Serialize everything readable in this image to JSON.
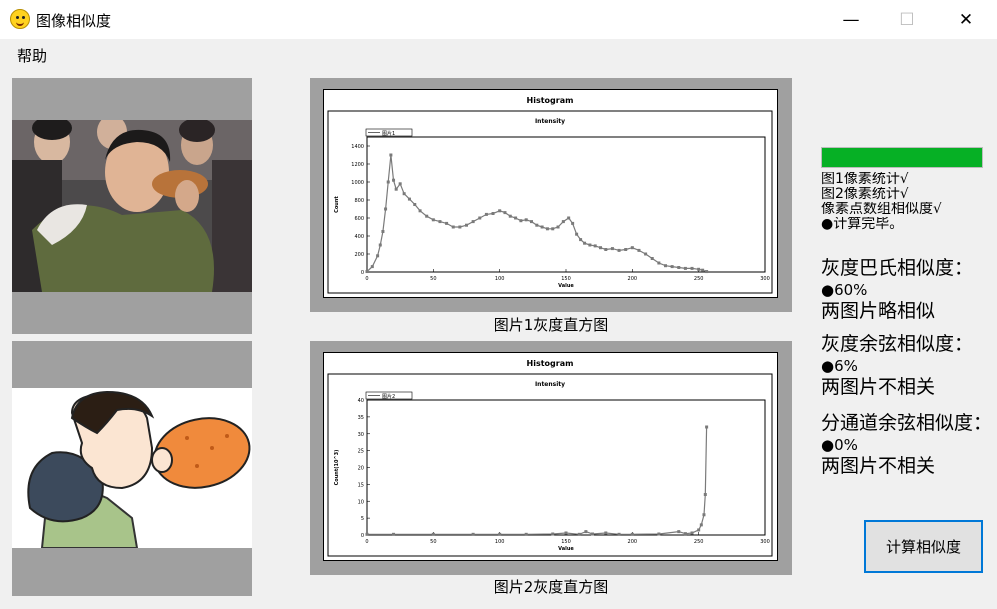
{
  "window": {
    "title": "图像相似度",
    "minimize": "—",
    "maximize": "☐",
    "close": "✕"
  },
  "menu": {
    "help": "帮助"
  },
  "histograms": [
    {
      "caption": "图片1灰度直方图",
      "title": "Histogram",
      "subtitle": "Intensity",
      "legend": "图片1",
      "xlabel": "Value",
      "ylabel": "Count",
      "x_ticks": [
        "0",
        "50",
        "100",
        "150",
        "200",
        "250",
        "300"
      ],
      "y_ticks": [
        "0",
        "200",
        "400",
        "600",
        "800",
        "1000",
        "1200",
        "1400"
      ]
    },
    {
      "caption": "图片2灰度直方图",
      "title": "Histogram",
      "subtitle": "Intensity",
      "legend": "图片2",
      "xlabel": "Value",
      "ylabel": "Count(10^3)",
      "x_ticks": [
        "0",
        "50",
        "100",
        "150",
        "200",
        "250",
        "300"
      ],
      "y_ticks": [
        "0",
        "5",
        "10",
        "15",
        "20",
        "25",
        "30",
        "35",
        "40"
      ]
    }
  ],
  "chart_data": [
    {
      "type": "line",
      "title": "Histogram",
      "subtitle": "Intensity",
      "xlabel": "Value",
      "ylabel": "Count",
      "xlim": [
        0,
        300
      ],
      "ylim": [
        0,
        1500
      ],
      "legend": "图片1",
      "x": [
        0,
        4,
        8,
        10,
        12,
        14,
        16,
        18,
        20,
        22,
        25,
        28,
        32,
        36,
        40,
        45,
        50,
        55,
        60,
        65,
        70,
        75,
        80,
        85,
        90,
        95,
        100,
        104,
        108,
        112,
        116,
        120,
        124,
        128,
        132,
        136,
        140,
        144,
        148,
        152,
        155,
        158,
        161,
        164,
        168,
        172,
        176,
        180,
        185,
        190,
        195,
        200,
        205,
        210,
        215,
        220,
        225,
        230,
        235,
        240,
        245,
        250,
        253,
        256
      ],
      "values": [
        5,
        60,
        180,
        300,
        450,
        700,
        1000,
        1300,
        1020,
        920,
        980,
        870,
        810,
        750,
        680,
        620,
        580,
        560,
        540,
        500,
        500,
        520,
        560,
        600,
        640,
        650,
        680,
        660,
        620,
        600,
        570,
        580,
        560,
        520,
        500,
        480,
        480,
        500,
        560,
        600,
        540,
        420,
        360,
        320,
        300,
        290,
        270,
        250,
        260,
        240,
        250,
        270,
        240,
        200,
        150,
        100,
        70,
        60,
        50,
        40,
        40,
        30,
        20,
        5
      ]
    },
    {
      "type": "line",
      "title": "Histogram",
      "subtitle": "Intensity",
      "xlabel": "Value",
      "ylabel": "Count(10^3)",
      "xlim": [
        0,
        300
      ],
      "ylim": [
        0,
        40
      ],
      "legend": "图片2",
      "x": [
        0,
        20,
        50,
        80,
        100,
        120,
        140,
        150,
        160,
        165,
        170,
        180,
        190,
        200,
        220,
        235,
        240,
        245,
        250,
        252,
        254,
        255,
        256
      ],
      "values": [
        0.2,
        0.2,
        0.2,
        0.2,
        0.2,
        0.2,
        0.3,
        0.6,
        0.2,
        1.0,
        0.3,
        0.6,
        0.2,
        0.2,
        0.3,
        1.0,
        0.4,
        0.6,
        1.5,
        3.0,
        6.0,
        12.0,
        32.0
      ]
    }
  ],
  "status": {
    "progress_pct": 100,
    "progress_color": "#06b025",
    "lines": [
      "图1像素统计√",
      "图2像素统计√",
      "像素点数组相似度√",
      "●计算完毕。"
    ]
  },
  "results": [
    {
      "label": "灰度巴氏相似度：",
      "value": "●60%",
      "conclusion": "两图片略相似"
    },
    {
      "label": "灰度余弦相似度：",
      "value": "●6%",
      "conclusion": "两图片不相关"
    },
    {
      "label": "分通道余弦相似度：",
      "value": "●0%",
      "conclusion": "两图片不相关"
    }
  ],
  "button": {
    "compute": "计算相似度"
  }
}
